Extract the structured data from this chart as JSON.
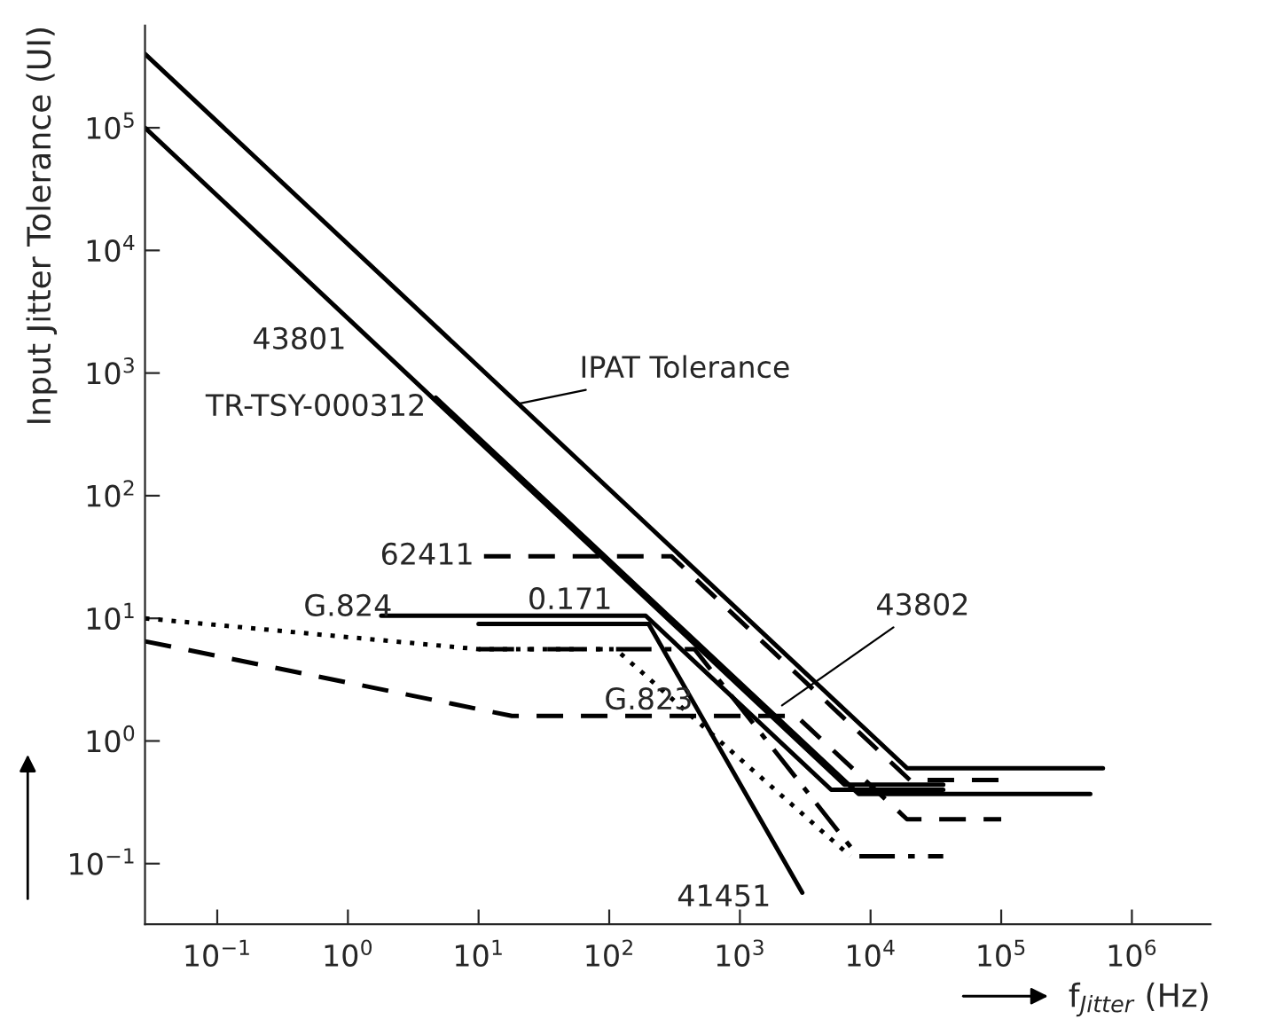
{
  "chart_data": {
    "type": "line",
    "xlabel": "f$_{Jitter}$ (Hz)",
    "ylabel": "Input Jitter Tolerance (UI)",
    "log": "xy",
    "grid": false,
    "xlim": [
      0.028,
      4000000
    ],
    "ylim": [
      0.032,
      680000
    ],
    "xticks": [
      {
        "value": 0.1,
        "label": "10$^{−1}$"
      },
      {
        "value": 1,
        "label": "10$^{0}$"
      },
      {
        "value": 10,
        "label": "10$^{1}$"
      },
      {
        "value": 100,
        "label": "10$^{2}$"
      },
      {
        "value": 1000,
        "label": "10$^{3}$"
      },
      {
        "value": 10000,
        "label": "10$^{4}$"
      },
      {
        "value": 100000,
        "label": "10$^{5}$"
      },
      {
        "value": 1000000,
        "label": "10$^{6}$"
      }
    ],
    "yticks": [
      {
        "value": 0.1,
        "label": "10$^{−1}$"
      },
      {
        "value": 1,
        "label": "10$^{0}$"
      },
      {
        "value": 10,
        "label": "10$^{1}$"
      },
      {
        "value": 100,
        "label": "10$^{2}$"
      },
      {
        "value": 1000,
        "label": "10$^{3}$"
      },
      {
        "value": 10000,
        "label": "10$^{4}$"
      },
      {
        "value": 100000,
        "label": "10$^{5}$"
      }
    ],
    "series": [
      {
        "color": "#000000",
        "line_style": "solid",
        "x": [
          0.028,
          19000,
          600000
        ],
        "values": [
          400000,
          0.6,
          0.6
        ]
      },
      {
        "color": "#000000",
        "line_style": "solid",
        "x": [
          0.028,
          6300,
          36000
        ],
        "values": [
          100000,
          0.44,
          0.44
        ]
      },
      {
        "color": "#000000",
        "line_style": "solid",
        "x": [
          4.7,
          8100,
          480000
        ],
        "values": [
          630,
          0.37,
          0.37
        ]
      },
      {
        "color": "#000000",
        "line_style": "dashed",
        "x": [
          11,
          300,
          20000,
          100000
        ],
        "values": [
          32,
          32,
          0.48,
          0.48
        ]
      },
      {
        "color": "#000000",
        "line_style": "solid",
        "x": [
          1.8,
          190,
          5000,
          36000
        ],
        "values": [
          10.5,
          10.5,
          0.4,
          0.4
        ]
      },
      {
        "color": "#000000",
        "line_style": "solid",
        "x": [
          10,
          200,
          3000
        ],
        "values": [
          9,
          9,
          0.058
        ]
      },
      {
        "color": "#000000",
        "line_style": "dotted",
        "x": [
          0.028,
          10,
          112,
          7000
        ],
        "values": [
          10,
          5.6,
          5.6,
          0.115
        ]
      },
      {
        "color": "#000000",
        "line_style": "dashdot",
        "x": [
          10,
          450,
          8000,
          36000
        ],
        "values": [
          5.6,
          5.6,
          0.115,
          0.115
        ]
      },
      {
        "color": "#000000",
        "line_style": "dashed",
        "x": [
          0.028,
          18,
          2700,
          19000,
          100000
        ],
        "values": [
          6.5,
          1.6,
          1.6,
          0.23,
          0.23
        ]
      }
    ],
    "annotations": [
      {
        "text": "IPAT Tolerance",
        "x": 20,
        "y": 560
      },
      {
        "text": "43801",
        "x": 1.26,
        "y": 2200
      },
      {
        "text": "TR-TSY-000312",
        "x": 4.7,
        "y": 630
      },
      {
        "text": "62411",
        "x": 11,
        "y": 32
      },
      {
        "text": "0.171",
        "x": 50,
        "y": 10.5
      },
      {
        "text": "G.824",
        "x": 1,
        "y": 7
      },
      {
        "text": "G.823",
        "x": 200,
        "y": 1.6
      },
      {
        "text": "43802",
        "x": 2100,
        "y": 1.95
      },
      {
        "text": "41451",
        "x": 2240,
        "y": 0.1
      }
    ]
  }
}
